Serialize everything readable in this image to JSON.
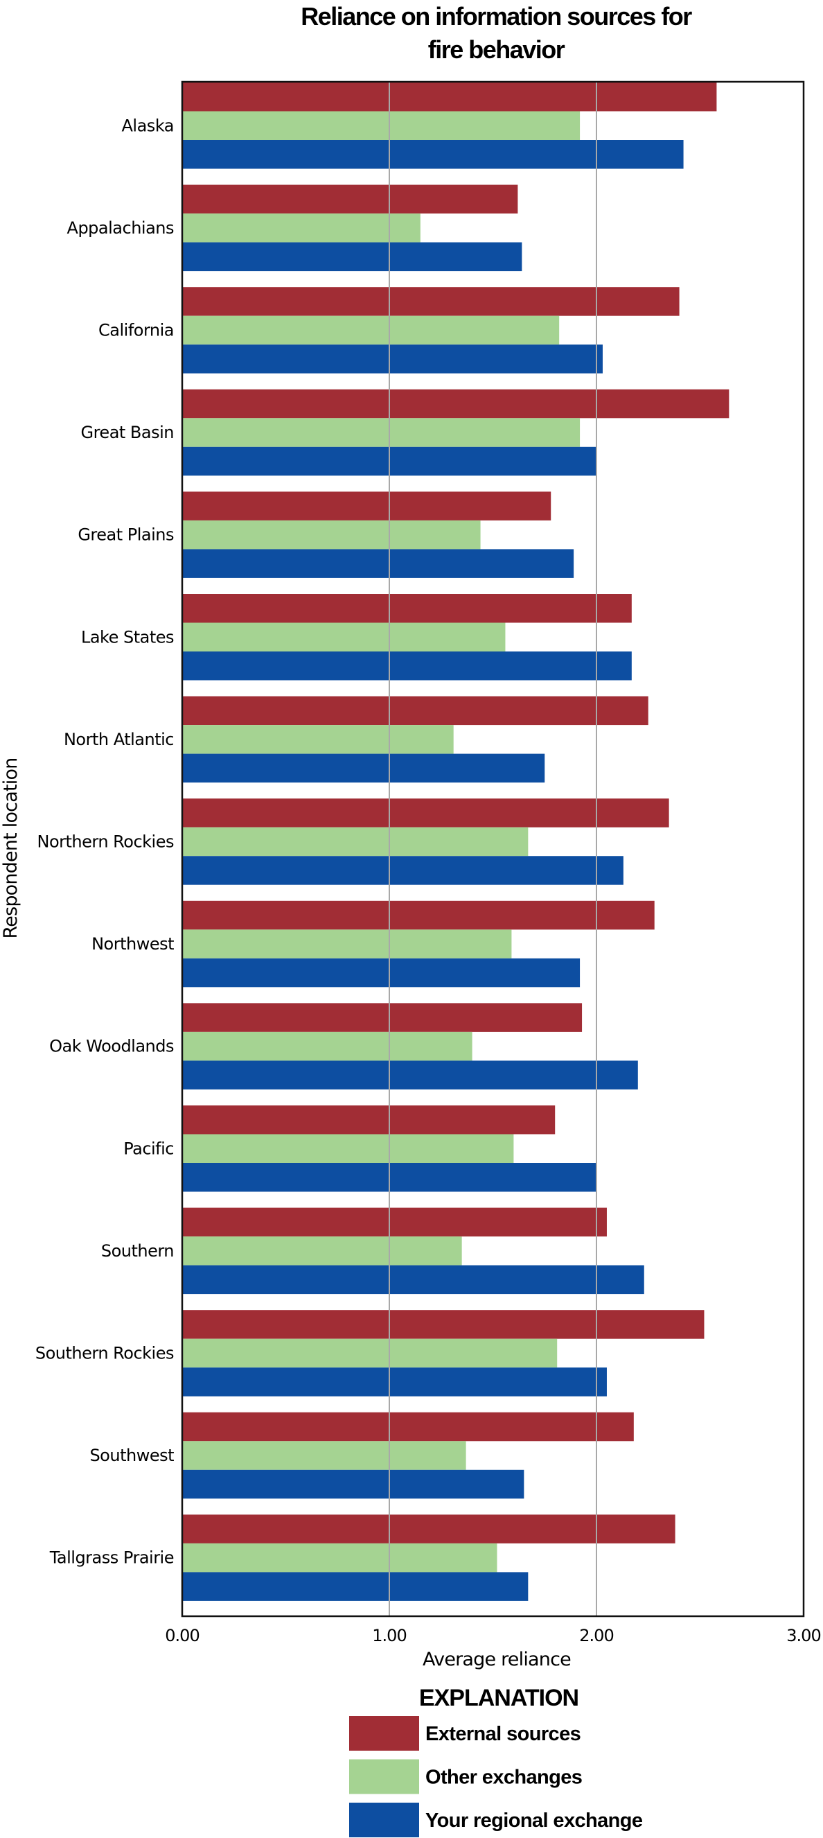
{
  "chart_data": {
    "type": "bar",
    "orientation": "horizontal",
    "title": "Reliance on information sources for fire behavior",
    "title_lines": [
      "Reliance on information sources for",
      "fire behavior"
    ],
    "xlabel": "Average reliance",
    "ylabel": "Respondent location",
    "xlim": [
      0,
      3
    ],
    "xticks": [
      0,
      1,
      2,
      3
    ],
    "xtick_labels": [
      "0.00",
      "1.00",
      "2.00",
      "3.00"
    ],
    "grid": "vertical at 1.00 and 2.00",
    "categories": [
      "Alaska",
      "Appalachians",
      "California",
      "Great Basin",
      "Great Plains",
      "Lake States",
      "North Atlantic",
      "Northern Rockies",
      "Northwest",
      "Oak Woodlands",
      "Pacific",
      "Southern",
      "Southern Rockies",
      "Southwest",
      "Tallgrass Prairie"
    ],
    "series": [
      {
        "name": "External sources",
        "color": "#a12d35",
        "values": [
          2.58,
          1.62,
          2.4,
          2.64,
          1.78,
          2.17,
          2.25,
          2.35,
          2.28,
          1.93,
          1.8,
          2.05,
          2.52,
          2.18,
          2.38
        ]
      },
      {
        "name": "Other exchanges",
        "color": "#a5d392",
        "values": [
          1.92,
          1.15,
          1.82,
          1.92,
          1.44,
          1.56,
          1.31,
          1.67,
          1.59,
          1.4,
          1.6,
          1.35,
          1.81,
          1.37,
          1.52
        ]
      },
      {
        "name": "Your regional exchange",
        "color": "#0d4ea1",
        "values": [
          2.42,
          1.64,
          2.03,
          2.0,
          1.89,
          2.17,
          1.75,
          2.13,
          1.92,
          2.2,
          2.0,
          2.23,
          2.05,
          1.65,
          1.67
        ]
      }
    ],
    "legend": {
      "title": "EXPLANATION",
      "placement": "bottom-center",
      "entries": [
        "External sources",
        "Other exchanges",
        "Your regional exchange"
      ]
    }
  }
}
